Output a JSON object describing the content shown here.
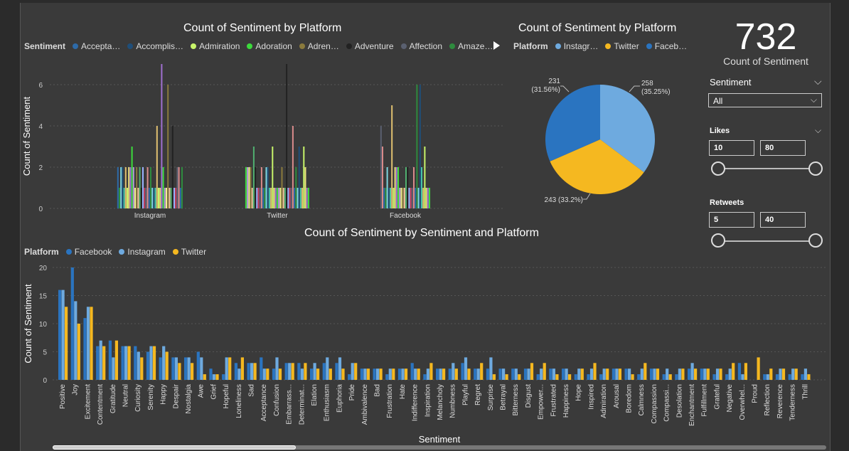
{
  "top_chart": {
    "title": "Count of Sentiment by Platform",
    "legend_title": "Sentiment",
    "legend_items": [
      {
        "label": "Accepta…",
        "color": "#2d6aa8"
      },
      {
        "label": "Accomplis…",
        "color": "#1f4e79"
      },
      {
        "label": "Admiration",
        "color": "#c8f56a"
      },
      {
        "label": "Adoration",
        "color": "#3cdb3c"
      },
      {
        "label": "Adren…",
        "color": "#8a7a3c"
      },
      {
        "label": "Adventure",
        "color": "#222222"
      },
      {
        "label": "Affection",
        "color": "#5a6070"
      },
      {
        "label": "Amaze…",
        "color": "#2e8b3e"
      }
    ],
    "ylabel": "Count of Sentiment"
  },
  "pie_chart": {
    "title": "Count of Sentiment by Platform",
    "legend_title": "Platform",
    "legend_items": [
      {
        "label": "Instagr…",
        "color": "#6eaadf"
      },
      {
        "label": "Twitter",
        "color": "#f5b820"
      },
      {
        "label": "Faceb…",
        "color": "#2a74c0"
      }
    ],
    "labels": {
      "instagram": [
        "258",
        "(35.25%)"
      ],
      "facebook": [
        "231",
        "(31.56%)"
      ],
      "twitter": "243 (33.2%)"
    }
  },
  "kpi": {
    "value": "732",
    "label": "Count of Sentiment"
  },
  "slicers": {
    "sentiment": {
      "title": "Sentiment",
      "value": "All"
    },
    "likes": {
      "title": "Likes",
      "min": "10",
      "max": "80"
    },
    "retweets": {
      "title": "Retweets",
      "min": "5",
      "max": "40"
    }
  },
  "bottom_chart": {
    "title": "Count of Sentiment by Sentiment and Platform",
    "legend_title": "Platform",
    "legend_items": [
      {
        "label": "Facebook",
        "color": "#2a74c0"
      },
      {
        "label": "Instagram",
        "color": "#6eaadf"
      },
      {
        "label": "Twitter",
        "color": "#f5b820"
      }
    ],
    "ylabel": "Count of Sentiment",
    "xlabel": "Sentiment"
  },
  "chart_data": [
    {
      "type": "bar",
      "title": "Count of Sentiment by Platform",
      "xlabel": "",
      "ylabel": "Count of Sentiment",
      "ylim": [
        0,
        7
      ],
      "yticks": [
        0,
        2,
        4,
        6
      ],
      "categories": [
        "Instagram",
        "Twitter",
        "Facebook"
      ],
      "series_groups": [
        [
          2,
          1,
          2,
          2,
          1,
          2,
          1,
          2,
          2,
          3,
          2,
          1,
          2,
          1,
          2,
          1,
          2,
          1,
          1,
          2,
          1,
          2,
          1,
          1,
          1,
          4,
          1,
          1,
          7,
          2,
          1,
          1,
          6,
          1,
          1,
          4,
          1,
          1,
          2,
          2,
          1,
          2
        ],
        [
          2,
          2,
          2,
          2,
          1,
          3,
          2,
          1,
          1,
          1,
          2,
          1,
          1,
          2,
          2,
          1,
          1,
          3,
          1,
          1,
          1,
          1,
          1,
          2,
          1,
          1,
          7,
          1,
          1,
          1,
          4,
          1,
          2,
          1,
          3,
          1,
          1,
          3,
          2,
          1,
          1
        ],
        [
          4,
          3,
          1,
          1,
          2,
          1,
          1,
          5,
          1,
          2,
          2,
          2,
          1,
          1,
          1,
          1,
          2,
          2,
          1,
          1,
          1,
          2,
          1,
          6,
          1,
          6,
          2,
          1,
          3,
          1,
          1,
          1
        ]
      ]
    },
    {
      "type": "pie",
      "title": "Count of Sentiment by Platform",
      "categories": [
        "Instagram",
        "Twitter",
        "Facebook"
      ],
      "values": [
        258,
        243,
        231
      ],
      "percents": [
        35.25,
        33.2,
        31.56
      ]
    },
    {
      "type": "bar",
      "title": "Count of Sentiment by Sentiment and Platform",
      "xlabel": "Sentiment",
      "ylabel": "Count of Sentiment",
      "ylim": [
        0,
        20
      ],
      "yticks": [
        0,
        5,
        10,
        15,
        20
      ],
      "categories": [
        "Positive",
        "Joy",
        "Excitement",
        "Contentment",
        "Gratitude",
        "Neutral",
        "Curiosity",
        "Serenity",
        "Happy",
        "Despair",
        "Nostalgia",
        "Awe",
        "Grief",
        "Hopeful",
        "Loneliness",
        "Sad",
        "Acceptance",
        "Confusion",
        "Embarrass...",
        "Determinat...",
        "Elation",
        "Enthusiasm",
        "Euphoria",
        "Pride",
        "Ambivalence",
        "Bad",
        "Frustration",
        "Hate",
        "Indifference",
        "Inspiration",
        "Melancholy",
        "Numbness",
        "Playful",
        "Regret",
        "Surprise",
        "Betrayal",
        "Bitterness",
        "Disgust",
        "Empower...",
        "Frustrated",
        "Happiness",
        "Hope",
        "Inspired",
        "Admiration",
        "Arousal",
        "Boredom",
        "Calmness",
        "Compassion",
        "Compassi...",
        "Desolation",
        "Enchantment",
        "Fulfillment",
        "Grateful",
        "Negative",
        "Overwhel...",
        "Proud",
        "Reflection",
        "Reverence",
        "Tenderness",
        "Thrill"
      ],
      "series": [
        {
          "name": "Facebook",
          "values": [
            16,
            20,
            11,
            6,
            7,
            6,
            6,
            5,
            4,
            4,
            4,
            5,
            2,
            1,
            3,
            3,
            4,
            2,
            3,
            3,
            2,
            3,
            3,
            1,
            2,
            2,
            1,
            2,
            3,
            1,
            2,
            2,
            3,
            2,
            2,
            2,
            2,
            2,
            1,
            2,
            2,
            1,
            1,
            1,
            2,
            2,
            1,
            2,
            1,
            1,
            2,
            2,
            1,
            1,
            3,
            0,
            1,
            1,
            1,
            1
          ]
        },
        {
          "name": "Instagram",
          "values": [
            16,
            14,
            13,
            7,
            4,
            6,
            5,
            6,
            6,
            4,
            4,
            4,
            1,
            4,
            2,
            3,
            2,
            4,
            3,
            2,
            3,
            4,
            4,
            3,
            2,
            2,
            2,
            2,
            2,
            2,
            2,
            3,
            4,
            2,
            4,
            2,
            2,
            2,
            2,
            2,
            2,
            2,
            2,
            2,
            2,
            2,
            2,
            2,
            2,
            2,
            3,
            2,
            2,
            2,
            1,
            0,
            1,
            2,
            2,
            2
          ]
        },
        {
          "name": "Twitter",
          "values": [
            13,
            10,
            13,
            6,
            7,
            6,
            4,
            6,
            5,
            3,
            3,
            1,
            1,
            4,
            4,
            3,
            2,
            2,
            3,
            3,
            2,
            2,
            2,
            3,
            2,
            2,
            2,
            2,
            2,
            3,
            2,
            2,
            2,
            3,
            1,
            1,
            1,
            3,
            3,
            1,
            1,
            2,
            3,
            2,
            2,
            1,
            3,
            2,
            1,
            2,
            2,
            2,
            2,
            3,
            3,
            4,
            2,
            2,
            2,
            1
          ]
        }
      ]
    }
  ]
}
